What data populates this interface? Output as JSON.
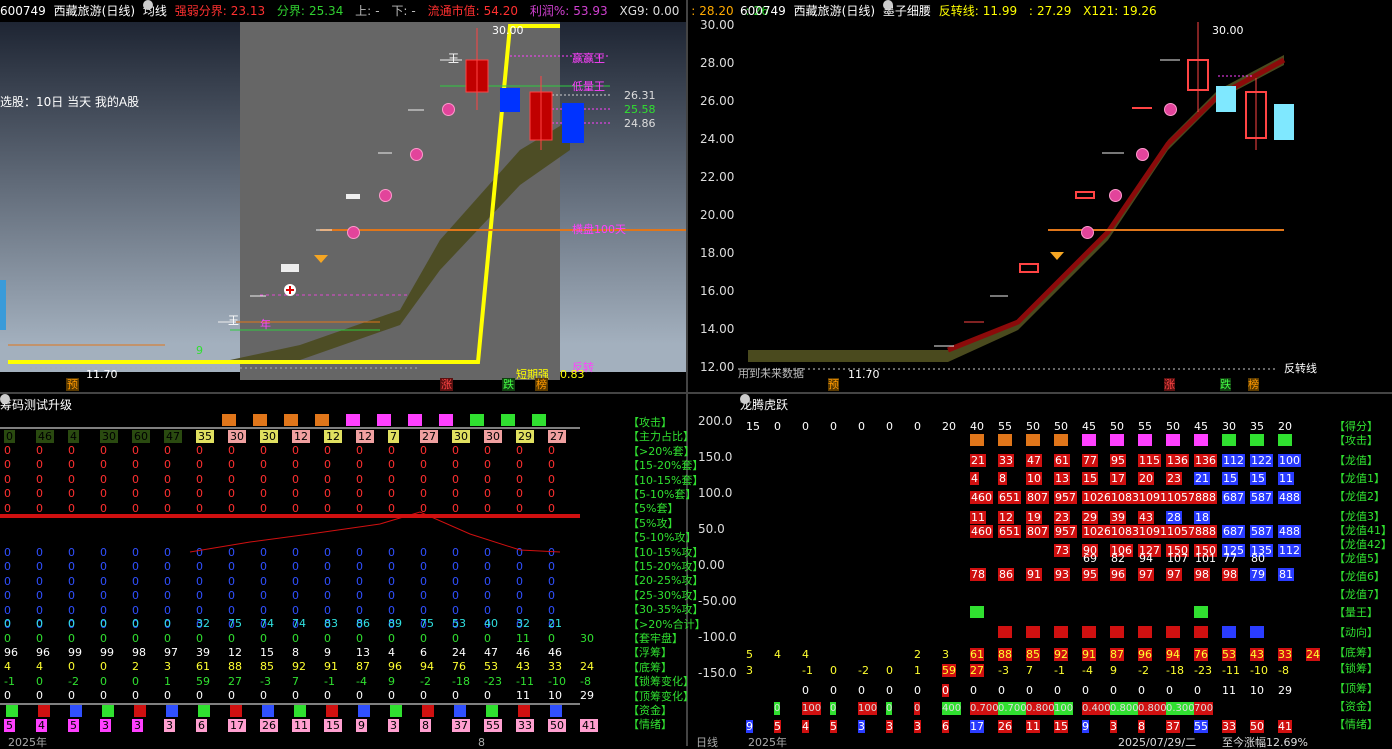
{
  "left_chart": {
    "code": "600749",
    "name": "西藏旅游(日线)",
    "indicator": "均线",
    "params": [
      {
        "label": "强弱分界:",
        "value": "23.13",
        "color": "#ff3030"
      },
      {
        "label": "分界:",
        "value": "25.34",
        "color": "#30d030"
      },
      {
        "label": "上:",
        "value": "-",
        "color": "#bbbbbb"
      },
      {
        "label": "下:",
        "value": "-",
        "color": "#bbbbbb"
      },
      {
        "label": "流通市值:",
        "value": "54.20",
        "color": "#ff3030"
      },
      {
        "label": "利润%:",
        "value": "53.93",
        "color": "#d040d0"
      },
      {
        "label": "XG9:",
        "value": "0.00",
        "color": "#dddddd"
      },
      {
        "label": ":",
        "value": "28.20",
        "color": "#ffaa00"
      },
      {
        "label": ":",
        "value": "26",
        "color": "#30d030"
      }
    ],
    "note": "选股：10日 当天 我的A股",
    "label_30": "30.00",
    "label_1170": "11.70",
    "label_yh": "赢赢王",
    "label_dxw": "低量王",
    "label_hp": "横盘100天",
    "label_fz": "反转",
    "label_dqq": "短期强",
    "dqq_value": "0.83",
    "price_2631": "26.31",
    "price_2558": "25.58",
    "price_2486": "24.86",
    "num_9": "9",
    "wang1": "王",
    "wang2": "王",
    "nian": "年",
    "tags": [
      "预",
      "涨",
      "跌",
      "榜"
    ]
  },
  "right_chart": {
    "code": "600749",
    "name": "西藏旅游(日线)",
    "indicator": "墨子细腰",
    "params": [
      {
        "label": "反转线:",
        "value": "11.99",
        "color": "#ffff00"
      },
      {
        "label": ":",
        "value": "27.29",
        "color": "#ffff00"
      },
      {
        "label": "X121:",
        "value": "19.26",
        "color": "#ffff00"
      }
    ],
    "yaxis": [
      "30.00",
      "28.00",
      "26.00",
      "24.00",
      "22.00",
      "20.00",
      "18.00",
      "16.00",
      "14.00",
      "12.00"
    ],
    "label_30": "30.00",
    "label_1170": "11.70",
    "label_fzx": "反转线",
    "label_fut": "用到未来数据",
    "tags": [
      "预",
      "涨",
      "跌",
      "榜"
    ]
  },
  "left_panel": {
    "title": "筹码测试升级",
    "labels": [
      "【攻击】",
      "【主力占比】",
      "【>20%套】",
      "【15-20%套】",
      "【10-15%套】",
      "【5-10%套】",
      "【5%套】",
      "【5%攻】",
      "【5-10%攻】",
      "【10-15%攻】",
      "【15-20%攻】",
      "【20-25%攻】",
      "【25-30%攻】",
      "【30-35%攻】",
      "【>20%合计】",
      "【套牢盘】",
      "【浮筹】",
      "【底筹】",
      "【锁筹变化】",
      "【顶筹变化】",
      "【资金】",
      "【情绪】"
    ],
    "row_jump_top": [
      "0",
      "46",
      "4",
      "30",
      "60",
      "47",
      "35",
      "30",
      "30",
      "12",
      "12",
      "12",
      "7",
      "27",
      "30",
      "30",
      "29",
      "27"
    ],
    "row_fucou": [
      "96",
      "96",
      "99",
      "99",
      "98",
      "97",
      "39",
      "12",
      "15",
      "8",
      "9",
      "13",
      "4",
      "6",
      "24",
      "47",
      "46",
      "46"
    ],
    "row_dicou": [
      "4",
      "4",
      "0",
      "0",
      "2",
      "3",
      "61",
      "88",
      "85",
      "92",
      "91",
      "87",
      "96",
      "94",
      "76",
      "53",
      "43",
      "33",
      "24"
    ],
    "row_suo": [
      "-1",
      "0",
      "-2",
      "0",
      "0",
      "1",
      "59",
      "27",
      "-3",
      "7",
      "-1",
      "-4",
      "9",
      "-2",
      "-18",
      "-23",
      "-11",
      "-10",
      "-8"
    ],
    "row_ding": [
      "0",
      "0",
      "0",
      "0",
      "0",
      "0",
      "0",
      "0",
      "0",
      "0",
      "0",
      "0",
      "0",
      "0",
      "0",
      "0",
      "11",
      "10",
      "29"
    ],
    "row_qx": [
      "5",
      "4",
      "5",
      "3",
      "3",
      "3",
      "6",
      "17",
      "26",
      "11",
      "15",
      "9",
      "3",
      "8",
      "37",
      "55",
      "33",
      "50",
      "41"
    ],
    "row_7021": [
      "0",
      "0",
      "0",
      "0",
      "0",
      "0",
      "32",
      "75",
      "74",
      "74",
      "83",
      "86",
      "89",
      "75",
      "53",
      "40",
      "32",
      "21"
    ],
    "row_tlp": [
      "0",
      "0",
      "0",
      "0",
      "0",
      "0",
      "0",
      "0",
      "0",
      "0",
      "0",
      "0",
      "0",
      "0",
      "0",
      "0",
      "11",
      "0",
      "30"
    ],
    "year": "2025年",
    "mid": "8"
  },
  "right_panel": {
    "title": "龙腾虎跃",
    "yaxis": [
      "200.0",
      "150.0",
      "100.0",
      "50.0",
      "0.00",
      "-50.00",
      "-100.0",
      "-150.0"
    ],
    "labels": [
      "【得分】",
      "【攻击】",
      "【龙值】",
      "【龙值1】",
      "【龙值2】",
      "【龙值3】",
      "【龙值41】",
      "【龙值42】",
      "【龙值5】",
      "【龙值6】",
      "【龙值7】",
      "【量王】",
      "【动向】",
      "【底筹】",
      "【锁筹】",
      "【顶筹】",
      "【资金】",
      "【情绪】"
    ],
    "score": [
      "15",
      "0",
      "0",
      "0",
      "0",
      "0",
      "0",
      "20",
      "40",
      "55",
      "50",
      "50",
      "45",
      "50",
      "55",
      "50",
      "45",
      "30",
      "35",
      "20"
    ],
    "lz": [
      "21",
      "33",
      "47",
      "61",
      "77",
      "95",
      "115",
      "136",
      "136",
      "112",
      "122",
      "100"
    ],
    "lz1": [
      "4",
      "8",
      "10",
      "13",
      "15",
      "17",
      "20",
      "23",
      "21",
      "15",
      "15",
      "11"
    ],
    "lz2": [
      "460",
      "651",
      "807",
      "957",
      "1026",
      "1083",
      "1091",
      "1057",
      "888",
      "687",
      "587",
      "488"
    ],
    "lz3": [
      "11",
      "12",
      "19",
      "23",
      "29",
      "39",
      "43",
      "28",
      "18"
    ],
    "lz42": [
      "73",
      "90",
      "106",
      "127",
      "150",
      "150",
      "125",
      "135",
      "112"
    ],
    "lz5": [
      "69",
      "82",
      "94",
      "107",
      "101",
      "77",
      "80"
    ],
    "lz6": [
      "78",
      "86",
      "91",
      "93",
      "95",
      "96",
      "97",
      "97",
      "98",
      "98",
      "79",
      "81"
    ],
    "dc": [
      "5",
      "4",
      "4",
      "2",
      "3",
      "61",
      "88",
      "85",
      "92",
      "91",
      "87",
      "96",
      "94",
      "76",
      "53",
      "43",
      "33",
      "24"
    ],
    "sc": [
      "3",
      "-1",
      "0",
      "-2",
      "0",
      "1",
      "59",
      "27",
      "-3",
      "7",
      "-1",
      "-4",
      "9",
      "-2",
      "-18",
      "-23",
      "-11",
      "-10",
      "-8"
    ],
    "top": [
      "0",
      "0",
      "0",
      "0",
      "0",
      "0",
      "0",
      "0",
      "0",
      "0",
      "0",
      "0",
      "0",
      "0",
      "0",
      "11",
      "10",
      "29"
    ],
    "qx": [
      "9",
      "5",
      "4",
      "5",
      "3",
      "3",
      "3",
      "6",
      "17",
      "26",
      "11",
      "15",
      "9",
      "3",
      "8",
      "37",
      "55",
      "33",
      "50",
      "41"
    ],
    "zj_vals": [
      "0",
      "100",
      "0",
      "100",
      "0",
      "0",
      "400",
      "0.700",
      "0.700",
      "0.800",
      "100",
      "0.400",
      "0.800",
      "0.800",
      "0.300",
      "700"
    ],
    "year": "2025年",
    "date": "2025/07/29/二",
    "pct": "至今涨幅12.69%",
    "period": "日线"
  }
}
